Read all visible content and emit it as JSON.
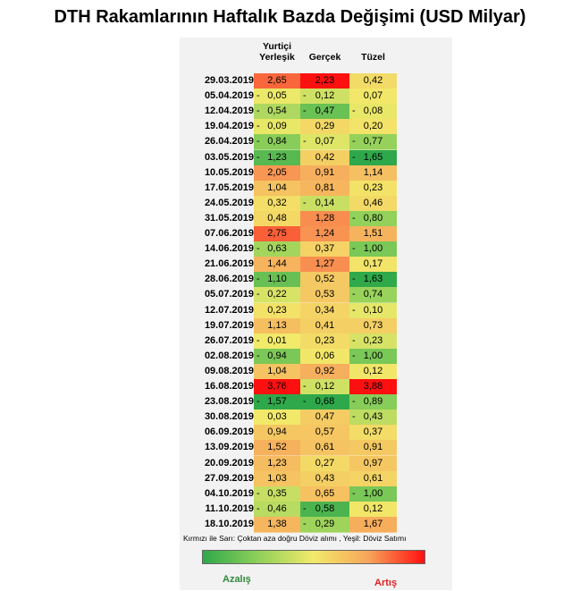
{
  "chart_data": {
    "type": "table",
    "title": "DTH Rakamlarının Haftalık Bazda Değişimi (USD Milyar)",
    "columns": [
      "Yurtiçi Yerleşik",
      "Gerçek",
      "Tüzel"
    ],
    "column_lines": [
      [
        "Yurtiçi",
        "Yerleşik"
      ],
      [
        "Gerçek"
      ],
      [
        "Tüzel"
      ]
    ],
    "rows": [
      {
        "date": "29.03.2019",
        "values": [
          2.65,
          2.23,
          0.42
        ],
        "text": [
          "2,65",
          "2,23",
          "0,42"
        ]
      },
      {
        "date": "05.04.2019",
        "values": [
          -0.05,
          -0.12,
          0.07
        ],
        "text": [
          "0,05",
          "0,12",
          "0,07"
        ]
      },
      {
        "date": "12.04.2019",
        "values": [
          -0.54,
          -0.47,
          -0.08
        ],
        "text": [
          "0,54",
          "0,47",
          "0,08"
        ]
      },
      {
        "date": "19.04.2019",
        "values": [
          -0.09,
          0.29,
          0.2
        ],
        "text": [
          "0,09",
          "0,29",
          "0,20"
        ]
      },
      {
        "date": "26.04.2019",
        "values": [
          -0.84,
          -0.07,
          -0.77
        ],
        "text": [
          "0,84",
          "0,07",
          "0,77"
        ]
      },
      {
        "date": "03.05.2019",
        "values": [
          -1.23,
          0.42,
          -1.65
        ],
        "text": [
          "1,23",
          "0,42",
          "1,65"
        ]
      },
      {
        "date": "10.05.2019",
        "values": [
          2.05,
          0.91,
          1.14
        ],
        "text": [
          "2,05",
          "0,91",
          "1,14"
        ]
      },
      {
        "date": "17.05.2019",
        "values": [
          1.04,
          0.81,
          0.23
        ],
        "text": [
          "1,04",
          "0,81",
          "0,23"
        ]
      },
      {
        "date": "24.05.2019",
        "values": [
          0.32,
          -0.14,
          0.46
        ],
        "text": [
          "0,32",
          "0,14",
          "0,46"
        ]
      },
      {
        "date": "31.05.2019",
        "values": [
          0.48,
          1.28,
          -0.8
        ],
        "text": [
          "0,48",
          "1,28",
          "0,80"
        ]
      },
      {
        "date": "07.06.2019",
        "values": [
          2.75,
          1.24,
          1.51
        ],
        "text": [
          "2,75",
          "1,24",
          "1,51"
        ]
      },
      {
        "date": "14.06.2019",
        "values": [
          -0.63,
          0.37,
          -1.0
        ],
        "text": [
          "0,63",
          "0,37",
          "1,00"
        ]
      },
      {
        "date": "21.06.2019",
        "values": [
          1.44,
          1.27,
          0.17
        ],
        "text": [
          "1,44",
          "1,27",
          "0,17"
        ]
      },
      {
        "date": "28.06.2019",
        "values": [
          -1.1,
          0.52,
          -1.63
        ],
        "text": [
          "1,10",
          "0,52",
          "1,63"
        ]
      },
      {
        "date": "05.07.2019",
        "values": [
          -0.22,
          0.53,
          -0.74
        ],
        "text": [
          "0,22",
          "0,53",
          "0,74"
        ]
      },
      {
        "date": "12.07.2019",
        "values": [
          0.23,
          0.34,
          -0.1
        ],
        "text": [
          "0,23",
          "0,34",
          "0,10"
        ]
      },
      {
        "date": "19.07.2019",
        "values": [
          1.13,
          0.41,
          0.73
        ],
        "text": [
          "1,13",
          "0,41",
          "0,73"
        ]
      },
      {
        "date": "26.07.2019",
        "values": [
          -0.01,
          0.23,
          -0.23
        ],
        "text": [
          "0,01",
          "0,23",
          "0,23"
        ]
      },
      {
        "date": "02.08.2019",
        "values": [
          -0.94,
          0.06,
          -1.0
        ],
        "text": [
          "0,94",
          "0,06",
          "1,00"
        ]
      },
      {
        "date": "09.08.2019",
        "values": [
          1.04,
          0.92,
          0.12
        ],
        "text": [
          "1,04",
          "0,92",
          "0,12"
        ]
      },
      {
        "date": "16.08.2019",
        "values": [
          3.76,
          -0.12,
          3.88
        ],
        "text": [
          "3,76",
          "0,12",
          "3,88"
        ]
      },
      {
        "date": "23.08.2019",
        "values": [
          -1.57,
          -0.68,
          -0.89
        ],
        "text": [
          "1,57",
          "0,68",
          "0,89"
        ]
      },
      {
        "date": "30.08.2019",
        "values": [
          0.03,
          0.47,
          -0.43
        ],
        "text": [
          "0,03",
          "0,47",
          "0,43"
        ]
      },
      {
        "date": "06.09.2019",
        "values": [
          0.94,
          0.57,
          0.37
        ],
        "text": [
          "0,94",
          "0,57",
          "0,37"
        ]
      },
      {
        "date": "13.09.2019",
        "values": [
          1.52,
          0.61,
          0.91
        ],
        "text": [
          "1,52",
          "0,61",
          "0,91"
        ]
      },
      {
        "date": "20.09.2019",
        "values": [
          1.23,
          0.27,
          0.97
        ],
        "text": [
          "1,23",
          "0,27",
          "0,97"
        ]
      },
      {
        "date": "27.09.2019",
        "values": [
          1.03,
          0.43,
          0.61
        ],
        "text": [
          "1,03",
          "0,43",
          "0,61"
        ]
      },
      {
        "date": "04.10.2019",
        "values": [
          -0.35,
          0.65,
          -1.0
        ],
        "text": [
          "0,35",
          "0,65",
          "1,00"
        ]
      },
      {
        "date": "11.10.2019",
        "values": [
          -0.46,
          -0.58,
          0.12
        ],
        "text": [
          "0,46",
          "0,58",
          "0,12"
        ]
      },
      {
        "date": "18.10.2019",
        "values": [
          1.38,
          -0.29,
          1.67
        ],
        "text": [
          "1,38",
          "0,29",
          "1,67"
        ]
      }
    ],
    "legend": {
      "text": "Kırmızı ile Sarı: Çoktan aza doğru Döviz alımı , Yeşil: Döviz Satımı",
      "low_label": "Azalış",
      "high_label": "Artış"
    },
    "colors": {
      "max_red": "#ff1010",
      "orange": "#f7a35a",
      "yellow": "#f2ea6a",
      "light_green": "#8fd05a",
      "max_green": "#2ea84a"
    }
  }
}
